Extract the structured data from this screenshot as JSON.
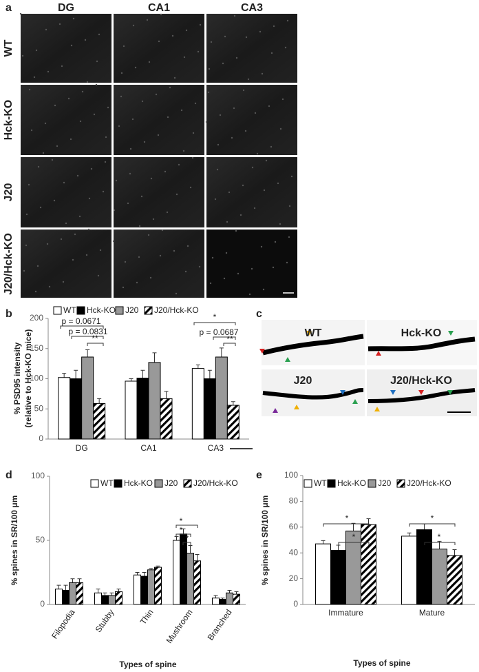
{
  "panel_a": {
    "letter": "a",
    "columns": [
      "DG",
      "CA1",
      "CA3"
    ],
    "rows": [
      "WT",
      "Hck-KO",
      "J20",
      "J20/Hck-KO"
    ]
  },
  "panel_c": {
    "letter": "c",
    "labels": [
      "WT",
      "Hck-KO",
      "J20",
      "J20/Hck-KO"
    ]
  },
  "chart_data": [
    {
      "type": "bar",
      "letter": "b",
      "y_label": [
        "% PSD95 intensity",
        "(relative to Hck-KO mice)"
      ],
      "categories": [
        "DG",
        "CA1",
        "CA3"
      ],
      "ylim": [
        0,
        200
      ],
      "yticks": [
        0,
        50,
        100,
        150,
        200
      ],
      "series": [
        {
          "name": "WT",
          "color": "#ffffff",
          "values": [
            102,
            96,
            117
          ],
          "errors": [
            7,
            4,
            6
          ]
        },
        {
          "name": "Hck-KO",
          "color": "#000000",
          "values": [
            100,
            101,
            100
          ],
          "errors": [
            14,
            13,
            14
          ]
        },
        {
          "name": "J20",
          "color": "#999999",
          "values": [
            136,
            127,
            136
          ],
          "errors": [
            12,
            16,
            15
          ]
        },
        {
          "name": "J20/Hck-KO",
          "color": "#000000",
          "hatch": true,
          "values": [
            59,
            67,
            56
          ],
          "errors": [
            8,
            12,
            6
          ]
        }
      ],
      "annotations": [
        "p = 0.0671",
        "p = 0.0831",
        "**",
        "*",
        "p = 0.0687",
        "**"
      ]
    },
    {
      "type": "bar",
      "letter": "d",
      "y_label": [
        "% spines in SR/100 μm"
      ],
      "x_label": "Types of spine",
      "categories": [
        "Filopodia",
        "Stubby",
        "Thin",
        "Mushroom",
        "Branched"
      ],
      "ylim": [
        0,
        100
      ],
      "yticks": [
        0,
        50,
        100
      ],
      "series": [
        {
          "name": "WT",
          "color": "#ffffff",
          "values": [
            12,
            9,
            23,
            50,
            5
          ],
          "errors": [
            3,
            3,
            2,
            3,
            2
          ]
        },
        {
          "name": "Hck-KO",
          "color": "#000000",
          "values": [
            11,
            7,
            22,
            55,
            4
          ],
          "errors": [
            4,
            2,
            3,
            4,
            1
          ]
        },
        {
          "name": "J20",
          "color": "#999999",
          "values": [
            17,
            7,
            27,
            40,
            9
          ],
          "errors": [
            3,
            2,
            1,
            6,
            2
          ]
        },
        {
          "name": "J20/Hck-KO",
          "color": "#000000",
          "hatch": true,
          "values": [
            17,
            10,
            29,
            34,
            8
          ],
          "errors": [
            3,
            2,
            1,
            5,
            2
          ]
        }
      ],
      "annotations": [
        "*",
        "*",
        "*"
      ]
    },
    {
      "type": "bar",
      "letter": "e",
      "y_label": [
        "% spines in SR/100 μm"
      ],
      "x_label": "Types of spine",
      "categories": [
        "Immature",
        "Mature"
      ],
      "ylim": [
        0,
        100
      ],
      "yticks": [
        0,
        20,
        40,
        60,
        80,
        100
      ],
      "series": [
        {
          "name": "WT",
          "color": "#ffffff",
          "values": [
            47,
            53
          ],
          "errors": [
            2.5,
            2.5
          ]
        },
        {
          "name": "Hck-KO",
          "color": "#000000",
          "values": [
            42,
            58
          ],
          "errors": [
            4,
            4.5
          ]
        },
        {
          "name": "J20",
          "color": "#999999",
          "values": [
            57,
            43
          ],
          "errors": [
            6,
            6
          ]
        },
        {
          "name": "J20/Hck-KO",
          "color": "#000000",
          "hatch": true,
          "values": [
            62,
            38
          ],
          "errors": [
            4.5,
            4.5
          ]
        }
      ],
      "annotations": [
        "*",
        "*",
        "*",
        "*"
      ]
    }
  ]
}
